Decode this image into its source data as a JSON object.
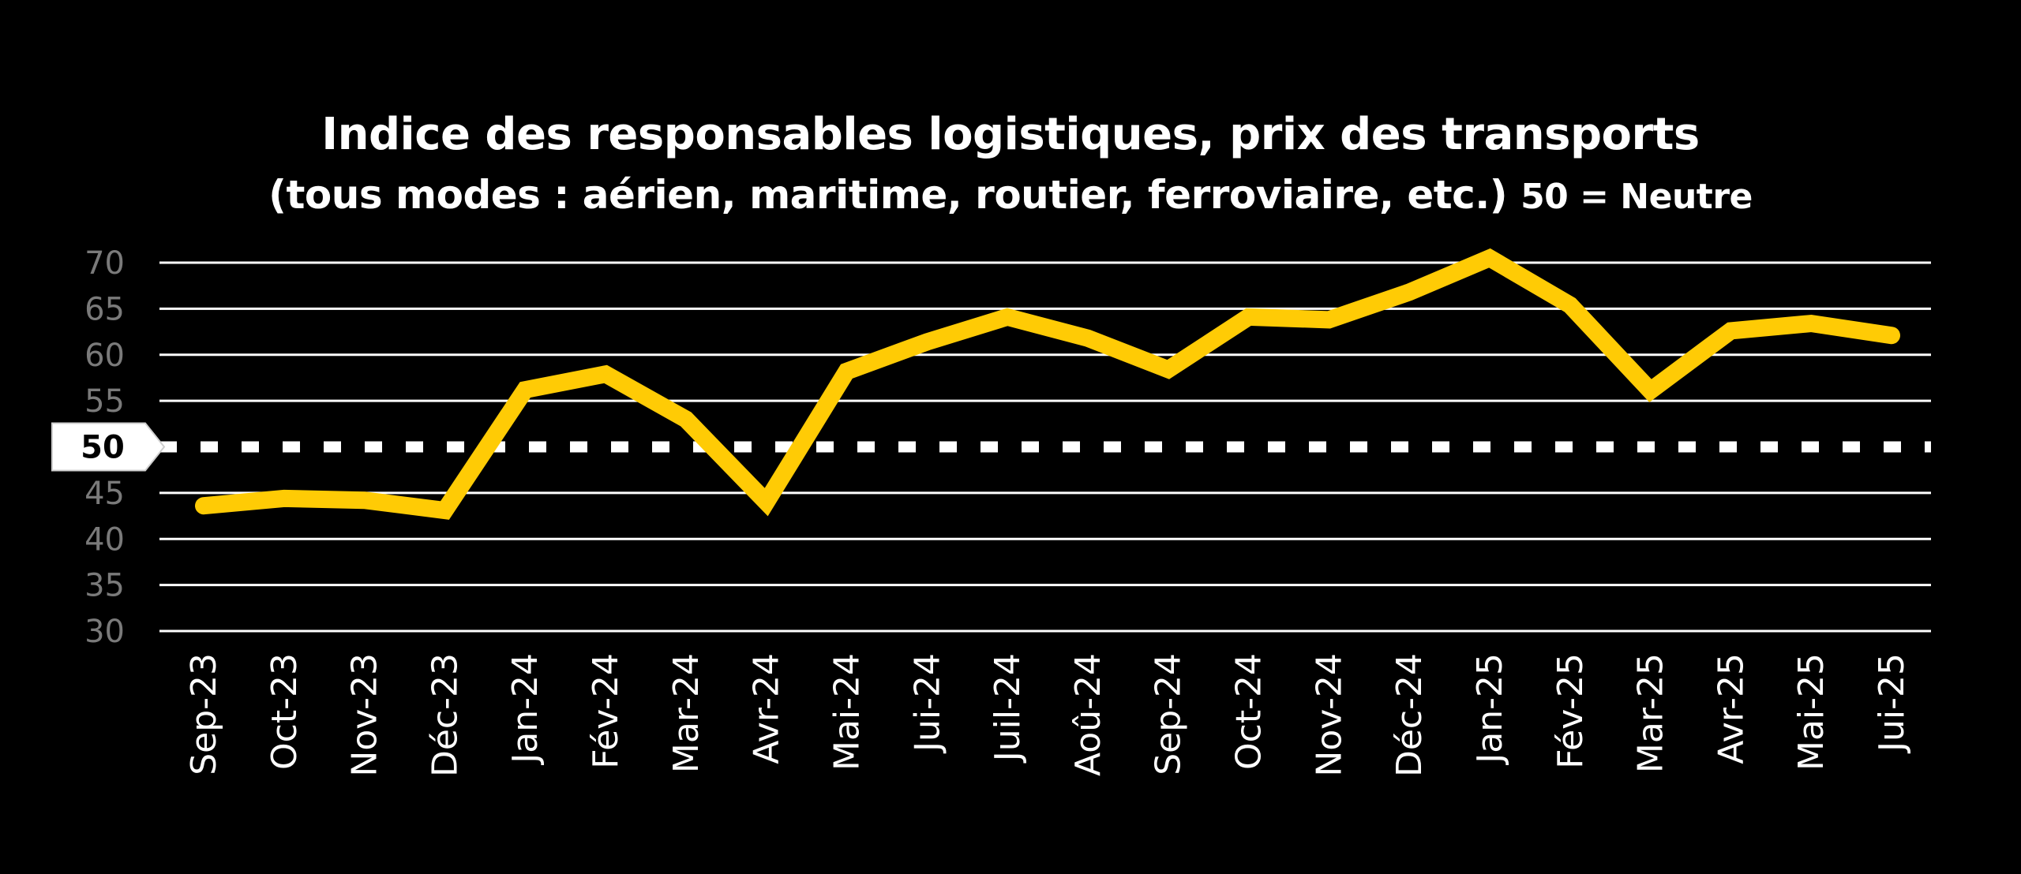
{
  "chart_data": {
    "type": "line",
    "title": "Indice des responsables logistiques, prix des transports",
    "subtitle": "(tous modes : aérien, maritime, routier, ferroviaire, etc.)",
    "subtitle_note": "50 = Neutre",
    "xlabel": "",
    "ylabel": "",
    "ylim": [
      30,
      70
    ],
    "yticks": [
      "70",
      "65",
      "60",
      "55",
      "45",
      "40",
      "35",
      "30"
    ],
    "reference_line": {
      "value": 50,
      "label": "50",
      "style": "dashed"
    },
    "grid": true,
    "categories": [
      "Sep-23",
      "Oct-23",
      "Nov-23",
      "Déc-23",
      "Jan-24",
      "Fév-24",
      "Mar-24",
      "Avr-24",
      "Mai-24",
      "Jui-24",
      "Juil-24",
      "Aoû-24",
      "Sep-24",
      "Oct-24",
      "Nov-24",
      "Déc-24",
      "Jan-25",
      "Fév-25",
      "Mar-25",
      "Avr-25",
      "Mai-25",
      "Jui-25"
    ],
    "series": [
      {
        "color": "#FFCB05",
        "values": [
          43.6,
          44.4,
          44.2,
          43.1,
          56.2,
          57.9,
          53.0,
          44.0,
          58.2,
          61.4,
          64.1,
          61.8,
          58.4,
          64.1,
          63.8,
          66.8,
          70.5,
          65.4,
          56.1,
          62.6,
          63.4,
          62.1
        ]
      }
    ],
    "colors": {
      "background": "#000000",
      "grid": "#ffffff",
      "reference": "#ffffff",
      "ytick": "#7a7a7a",
      "xtick": "#ffffff",
      "line": "#FFCB05"
    }
  }
}
